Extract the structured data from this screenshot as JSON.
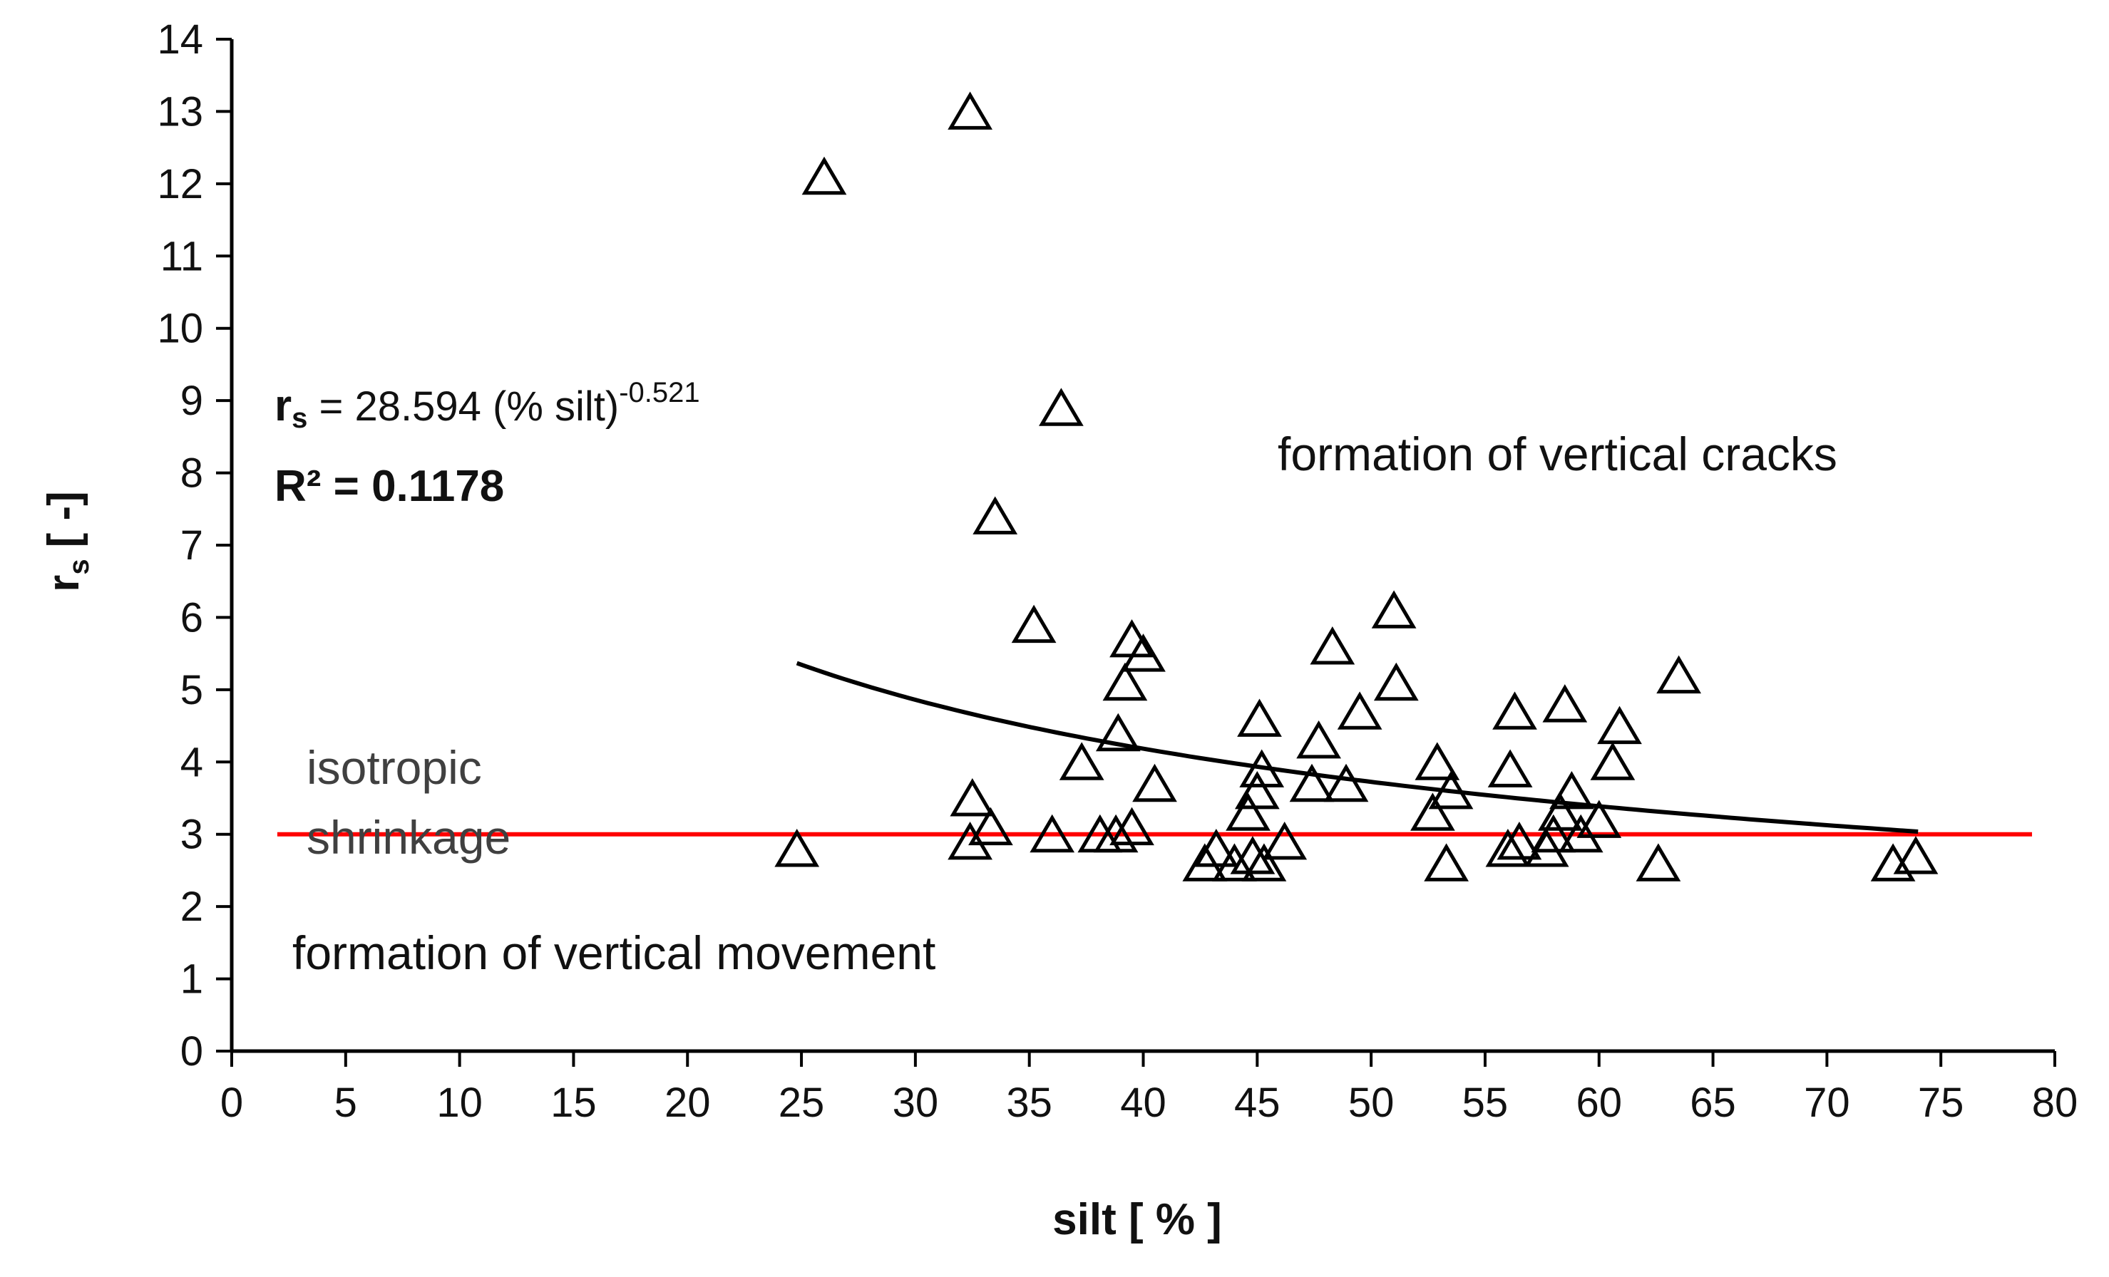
{
  "chart_data": {
    "type": "scatter",
    "xlabel": "silt [ % ]",
    "ylabel": "rs [-]",
    "ylabel_main": "r",
    "ylabel_sub": "s",
    "ylabel_unit": "[ -]",
    "xlim": [
      0,
      80
    ],
    "ylim": [
      0,
      14
    ],
    "xticks": [
      0,
      5,
      10,
      15,
      20,
      25,
      30,
      35,
      40,
      45,
      50,
      55,
      60,
      65,
      70,
      75,
      80
    ],
    "yticks": [
      0,
      1,
      2,
      3,
      4,
      5,
      6,
      7,
      8,
      9,
      10,
      11,
      12,
      13,
      14
    ],
    "grid": false,
    "series": [
      {
        "name": "samples",
        "marker": "open-triangle",
        "color": "#000000",
        "points": [
          {
            "x": 24.8,
            "y": 2.8
          },
          {
            "x": 26.0,
            "y": 12.1
          },
          {
            "x": 32.4,
            "y": 13.0
          },
          {
            "x": 32.5,
            "y": 3.5
          },
          {
            "x": 32.4,
            "y": 2.9
          },
          {
            "x": 33.3,
            "y": 3.1
          },
          {
            "x": 33.5,
            "y": 7.4
          },
          {
            "x": 35.2,
            "y": 5.9
          },
          {
            "x": 36.0,
            "y": 3.0
          },
          {
            "x": 36.4,
            "y": 8.9
          },
          {
            "x": 37.3,
            "y": 4.0
          },
          {
            "x": 38.1,
            "y": 3.0
          },
          {
            "x": 38.8,
            "y": 3.0
          },
          {
            "x": 38.9,
            "y": 4.4
          },
          {
            "x": 39.2,
            "y": 5.1
          },
          {
            "x": 39.5,
            "y": 5.7
          },
          {
            "x": 39.5,
            "y": 3.1
          },
          {
            "x": 40.0,
            "y": 5.5
          },
          {
            "x": 40.5,
            "y": 3.7
          },
          {
            "x": 42.7,
            "y": 2.6
          },
          {
            "x": 43.2,
            "y": 2.8
          },
          {
            "x": 44.0,
            "y": 2.6
          },
          {
            "x": 44.6,
            "y": 3.3
          },
          {
            "x": 44.8,
            "y": 2.7
          },
          {
            "x": 45.0,
            "y": 3.6
          },
          {
            "x": 45.1,
            "y": 4.6
          },
          {
            "x": 45.2,
            "y": 3.9
          },
          {
            "x": 45.3,
            "y": 2.6
          },
          {
            "x": 46.2,
            "y": 2.9
          },
          {
            "x": 47.4,
            "y": 3.7
          },
          {
            "x": 47.7,
            "y": 4.3
          },
          {
            "x": 48.3,
            "y": 5.6
          },
          {
            "x": 48.9,
            "y": 3.7
          },
          {
            "x": 49.5,
            "y": 4.7
          },
          {
            "x": 51.0,
            "y": 6.1
          },
          {
            "x": 51.1,
            "y": 5.1
          },
          {
            "x": 52.7,
            "y": 3.3
          },
          {
            "x": 52.9,
            "y": 4.0
          },
          {
            "x": 53.3,
            "y": 2.6
          },
          {
            "x": 53.5,
            "y": 3.6
          },
          {
            "x": 56.0,
            "y": 2.8
          },
          {
            "x": 56.1,
            "y": 3.9
          },
          {
            "x": 56.3,
            "y": 4.7
          },
          {
            "x": 56.5,
            "y": 2.9
          },
          {
            "x": 57.7,
            "y": 2.8
          },
          {
            "x": 58.0,
            "y": 3.0
          },
          {
            "x": 58.3,
            "y": 3.3
          },
          {
            "x": 58.5,
            "y": 4.8
          },
          {
            "x": 58.8,
            "y": 3.6
          },
          {
            "x": 59.2,
            "y": 3.0
          },
          {
            "x": 60.0,
            "y": 3.2
          },
          {
            "x": 60.6,
            "y": 4.0
          },
          {
            "x": 60.9,
            "y": 4.5
          },
          {
            "x": 62.6,
            "y": 2.6
          },
          {
            "x": 63.5,
            "y": 5.2
          },
          {
            "x": 72.9,
            "y": 2.6
          },
          {
            "x": 73.9,
            "y": 2.7
          }
        ]
      }
    ],
    "trendline": {
      "type": "power",
      "coefficient": 28.594,
      "exponent": -0.521,
      "x_from": 24.8,
      "x_to": 74,
      "color": "#000000"
    },
    "reference_line": {
      "y": 3,
      "x_from": 2,
      "x_to": 79,
      "color": "#ff0000"
    },
    "annotations": {
      "eq_main": "r",
      "eq_sub": "s",
      "eq_rest": " = 28.594 (% silt)",
      "eq_exp": "-0.521",
      "r2": "R² = 0.1178",
      "cracks": "formation of vertical cracks",
      "iso_line1": "isotropic",
      "iso_line2": "shrinkage",
      "movement": "formation of vertical movement"
    }
  }
}
